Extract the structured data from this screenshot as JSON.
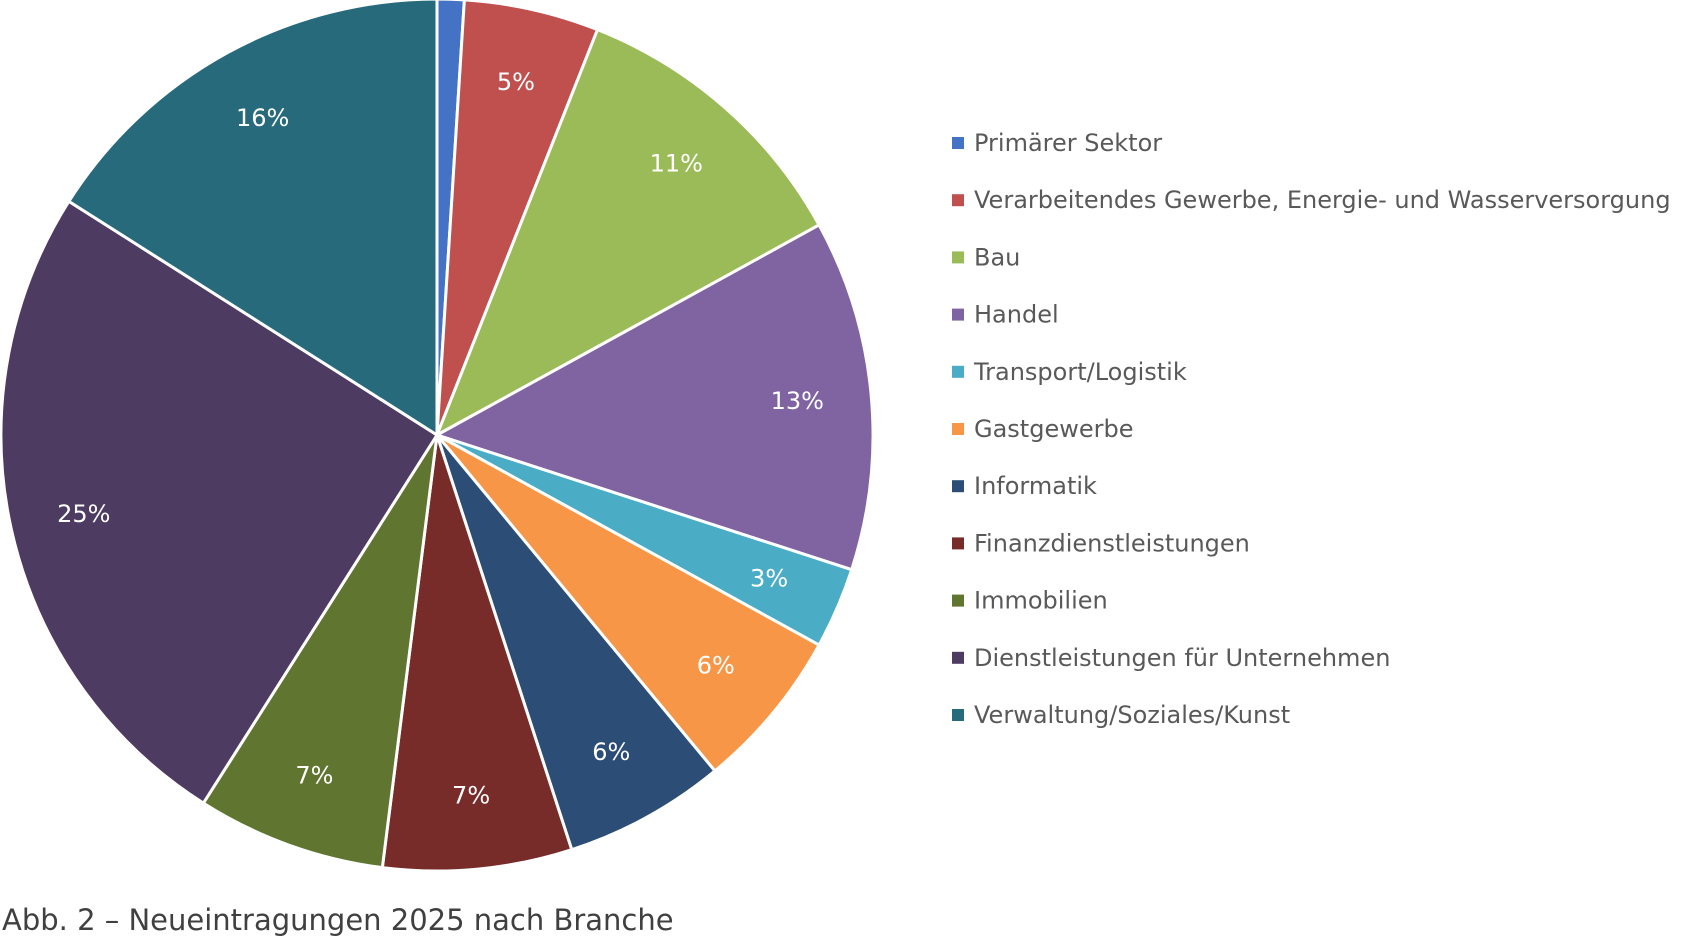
{
  "chart_data": {
    "type": "pie",
    "categories": [
      "Primärer Sektor",
      "Verarbeitendes Gewerbe, Energie- und Wasserversorgung",
      "Bau",
      "Handel",
      "Transport/Logistik",
      "Gastgewerbe",
      "Informatik",
      "Finanzdienstleistungen",
      "Immobilien",
      "Dienstleistungen für Unternehmen",
      "Verwaltung/Soziales/Kunst"
    ],
    "values": [
      1,
      5,
      11,
      13,
      3,
      6,
      6,
      7,
      7,
      25,
      16
    ],
    "labels": [
      "",
      "5%",
      "11%",
      "13%",
      "3%",
      "6%",
      "6%",
      "7%",
      "7%",
      "25%",
      "16%"
    ],
    "colors": [
      "#4472C4",
      "#C0504D",
      "#9BBB59",
      "#8064A2",
      "#4BACC6",
      "#F79646",
      "#2C4D75",
      "#772C2A",
      "#5F7530",
      "#4D3B62",
      "#276A7C"
    ],
    "unit": "%",
    "title": "",
    "legend_position": "right"
  },
  "caption": "Abb. 2 – Neueintragungen 2025 nach Branche"
}
